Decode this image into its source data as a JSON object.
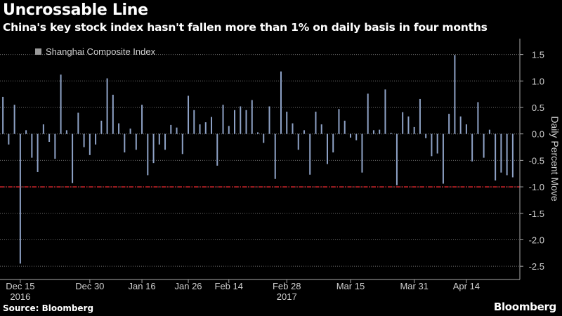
{
  "header": {
    "title": "Uncrossable Line",
    "subtitle": "China's key stock index hasn't fallen more than 1% on daily basis in four months"
  },
  "footer": {
    "source": "Source: Bloomberg",
    "brand": "Bloomberg"
  },
  "colors": {
    "background": "#000000",
    "bar": "#8ea2c6",
    "threshold": "#e0262c",
    "grid": "#6e6e6e",
    "text": "#ffffff",
    "tick_text": "#d0d0d0"
  },
  "chart_data": {
    "type": "bar",
    "title": "Uncrossable Line",
    "subtitle": "China's key stock index hasn't fallen more than 1% on daily basis in four months",
    "ylabel": "Daily Percent Move",
    "xlabel": "",
    "ylim": [
      -2.75,
      1.8
    ],
    "yticks": [
      1.5,
      1.0,
      0.5,
      0.0,
      -0.5,
      -1.0,
      -1.5,
      -2.0,
      -2.5
    ],
    "grid": true,
    "legend": {
      "placement": "top-left",
      "entries": [
        "Shanghai Composite Index"
      ]
    },
    "reference_line": {
      "value": -1.0,
      "style": "dash-dot"
    },
    "series": [
      {
        "name": "Shanghai Composite Index",
        "values": [
          0.7,
          -0.2,
          0.55,
          -2.45,
          0.07,
          -0.45,
          -0.72,
          0.18,
          -0.15,
          -0.47,
          1.12,
          0.07,
          -0.93,
          0.4,
          -0.25,
          -0.4,
          -0.2,
          0.25,
          1.05,
          0.74,
          0.2,
          -0.35,
          0.1,
          -0.3,
          0.55,
          -0.78,
          -0.55,
          -0.2,
          -0.3,
          0.17,
          0.12,
          -0.38,
          0.72,
          0.45,
          0.18,
          0.22,
          0.32,
          -0.6,
          0.55,
          0.15,
          0.45,
          0.52,
          0.45,
          0.64,
          0.03,
          -0.17,
          0.52,
          -0.85,
          1.18,
          0.42,
          0.2,
          -0.3,
          0.07,
          -0.77,
          0.42,
          0.18,
          -0.57,
          -0.35,
          0.47,
          0.25,
          -0.07,
          -0.12,
          -0.73,
          0.76,
          0.07,
          0.08,
          0.84,
          0.02,
          -0.97,
          0.41,
          0.33,
          0.13,
          0.66,
          -0.08,
          -0.42,
          -0.37,
          -0.94,
          0.38,
          1.49,
          0.33,
          0.18,
          -0.52,
          0.6,
          -0.45,
          0.08,
          -0.88,
          -0.73,
          -0.78,
          -0.82
        ]
      }
    ],
    "tick_labels": [
      {
        "label": "Dec 15",
        "index": 3,
        "sub": "2016"
      },
      {
        "label": "Dec 30",
        "index": 15
      },
      {
        "label": "Jan 16",
        "index": 24
      },
      {
        "label": "Jan 26",
        "index": 32
      },
      {
        "label": "Feb 14",
        "index": 39
      },
      {
        "label": "Feb 28",
        "index": 49,
        "sub": "2017"
      },
      {
        "label": "Mar 15",
        "index": 60
      },
      {
        "label": "Mar 31",
        "index": 71
      },
      {
        "label": "Apr 14",
        "index": 80
      }
    ]
  }
}
